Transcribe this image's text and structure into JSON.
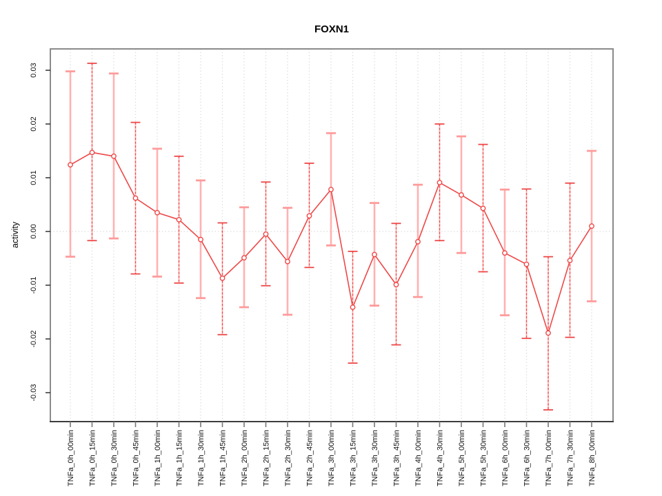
{
  "title": "FOXN1",
  "colors": {
    "series_red": "#ee4747",
    "errorbar_pink_stem": "#ffb1b1",
    "errorbar_pink_cap": "#ff9b9b",
    "errorbar_dashed_red": "#ee4747",
    "gridline_gray": "#dcdcdc",
    "box_gray": "#8a8a8a",
    "axis_dark": "#222222",
    "tick_gray": "#777777",
    "background": "#ffffff"
  },
  "chart_data": {
    "type": "line",
    "title": "FOXN1",
    "ylabel": "activity",
    "ylim": [
      -0.0347,
      0.0341
    ],
    "yticks": [
      -0.03,
      -0.02,
      -0.01,
      0,
      0.01,
      0.02,
      0.03
    ],
    "ytick_labels": [
      "-0.03",
      "-0.02",
      "-0.01",
      "0.00",
      "0.01",
      "0.02",
      "0.03"
    ],
    "grid": "vertical dotted gridlines at each category; dotted horizontal line at 0.00",
    "legend": "none",
    "marker": "open-circle",
    "categories": [
      "TNFa_0h_00min",
      "TNFa_0h_15min",
      "TNFa_0h_30min",
      "TNFa_0h_45min",
      "TNFa_1h_00min",
      "TNFa_1h_15min",
      "TNFa_1h_30min",
      "TNFa_1h_45min",
      "TNFa_2h_00min",
      "TNFa_2h_15min",
      "TNFa_2h_30min",
      "TNFa_2h_45min",
      "TNFa_3h_00min",
      "TNFa_3h_15min",
      "TNFa_3h_30min",
      "TNFa_3h_45min",
      "TNFa_4h_00min",
      "TNFa_4h_30min",
      "TNFa_5h_00min",
      "TNFa_5h_30min",
      "TNFa_6h_00min",
      "TNFa_6h_30min",
      "TNFa_7h_00min",
      "TNFa_7h_30min",
      "TNFa_8h_00min"
    ],
    "series": [
      {
        "name": "activity",
        "values": [
          0.0124,
          0.0147,
          0.014,
          0.0062,
          0.0035,
          0.0022,
          -0.0015,
          -0.0087,
          -0.0049,
          -0.0005,
          -0.0056,
          0.0029,
          0.0078,
          -0.0141,
          -0.0043,
          -0.0099,
          -0.0019,
          0.0091,
          0.0068,
          0.0043,
          -0.004,
          -0.0061,
          -0.0189,
          -0.0054,
          0.001
        ],
        "ci_high": [
          0.0298,
          0.0313,
          0.0294,
          0.0203,
          0.0154,
          0.014,
          0.0095,
          0.0016,
          0.0045,
          0.0092,
          0.0044,
          0.0127,
          0.0183,
          -0.0037,
          0.0053,
          0.0015,
          0.0087,
          0.02,
          0.0177,
          0.0162,
          0.0078,
          0.0079,
          -0.0047,
          0.009,
          0.015
        ],
        "ci_low": [
          -0.0047,
          -0.0017,
          -0.0013,
          -0.0079,
          -0.0084,
          -0.0096,
          -0.0124,
          -0.0192,
          -0.0141,
          -0.0101,
          -0.0155,
          -0.0067,
          -0.0026,
          -0.0245,
          -0.0138,
          -0.0211,
          -0.0122,
          -0.0017,
          -0.004,
          -0.0075,
          -0.0156,
          -0.0199,
          -0.0332,
          -0.0197,
          -0.013
        ]
      }
    ],
    "error_bar_styles": [
      "pink-solid",
      "red-dashed",
      "pink-solid",
      "red-dashed",
      "pink-solid",
      "red-dashed",
      "pink-solid",
      "red-dashed",
      "pink-solid",
      "red-dashed",
      "pink-solid",
      "red-dashed",
      "pink-solid",
      "red-dashed",
      "pink-solid",
      "red-dashed",
      "pink-solid",
      "red-dashed",
      "pink-solid",
      "red-dashed",
      "pink-solid",
      "red-dashed",
      "red-dashed",
      "red-dashed",
      "pink-solid"
    ]
  }
}
